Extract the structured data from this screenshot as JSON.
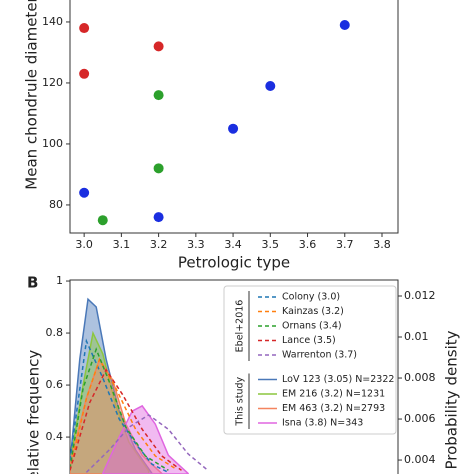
{
  "chart_data": [
    {
      "type": "scatter",
      "x_label": "Petrologic type",
      "y_label": "Mean chondrule diameter",
      "xlim": [
        2.962,
        3.843
      ],
      "xticks": [
        {
          "value": 3.0,
          "label": "3.0"
        },
        3.1,
        3.2,
        3.3,
        3.4,
        3.5,
        3.6,
        3.7,
        3.8
      ],
      "ylim": [
        70.8,
        147.2
      ],
      "yticks": [
        80,
        100,
        120,
        140
      ],
      "series": [
        {
          "color": "#d62728",
          "x": [
            3.0,
            3.0,
            3.2
          ],
          "values": [
            138,
            123,
            132
          ]
        },
        {
          "color": "#1a2ee0",
          "x": [
            3.0,
            3.2,
            3.4,
            3.5,
            3.7
          ],
          "values": [
            84,
            76,
            105,
            119,
            139
          ]
        },
        {
          "color": "#2ca02c",
          "x": [
            3.05,
            3.2,
            3.2
          ],
          "values": [
            75,
            116,
            92
          ]
        }
      ]
    },
    {
      "type": "density",
      "panel_label": "B",
      "y_label": "Relative frequency",
      "y2_label": "Probability density",
      "xlim": [
        0,
        100
      ],
      "ylim": [
        0.258,
        1.004
      ],
      "yticks": [
        0.4,
        0.6,
        0.8,
        1.0
      ],
      "y2lim": [
        0.00332,
        0.01278
      ],
      "y2ticks": [
        0.004,
        0.006,
        0.008,
        0.01,
        0.012
      ],
      "groups": [
        {
          "label": "Ebel+2016",
          "series": [
            {
              "name": "Colony (3.0)",
              "color": "#1f77b4",
              "style": "dashed",
              "axis": "y2",
              "x": [
                0,
                5,
                10,
                15,
                20,
                25,
                30
              ],
              "values": [
                0.004,
                0.0098,
                0.008,
                0.006,
                0.0048,
                0.0038,
                0.0034
              ]
            },
            {
              "name": "Kainzas (3.2)",
              "color": "#ff7f0e",
              "style": "dashed",
              "axis": "y2",
              "x": [
                0,
                5,
                9,
                14,
                20,
                26,
                32
              ],
              "values": [
                0.0035,
                0.007,
                0.0089,
                0.0075,
                0.0055,
                0.0042,
                0.0036
              ]
            },
            {
              "name": "Ornans (3.4)",
              "color": "#2ca02c",
              "style": "dashed",
              "axis": "y2",
              "x": [
                0,
                4,
                8,
                12,
                17,
                23,
                30
              ],
              "values": [
                0.0036,
                0.0075,
                0.0094,
                0.0078,
                0.0056,
                0.0042,
                0.0035
              ]
            },
            {
              "name": "Lance (3.5)",
              "color": "#d62728",
              "style": "dashed",
              "axis": "y2",
              "x": [
                0,
                6,
                11,
                16,
                22,
                28,
                34
              ],
              "values": [
                0.0035,
                0.0068,
                0.0084,
                0.0072,
                0.0055,
                0.0042,
                0.0035
              ]
            },
            {
              "name": "Warrenton (3.7)",
              "color": "#9467bd",
              "style": "dashed",
              "axis": "y2",
              "x": [
                5,
                12,
                18,
                24,
                30,
                36,
                42
              ],
              "values": [
                0.0034,
                0.0045,
                0.0056,
                0.0062,
                0.0055,
                0.0043,
                0.0035
              ]
            }
          ]
        },
        {
          "label": "This study",
          "series": [
            {
              "name": "LoV 123 (3.05) N=2322",
              "color": "#4a78b8",
              "style": "filled",
              "axis": "y",
              "x": [
                0,
                3,
                5.5,
                8,
                11,
                15,
                20,
                25
              ],
              "values": [
                0.3,
                0.7,
                0.93,
                0.9,
                0.7,
                0.5,
                0.35,
                0.26
              ]
            },
            {
              "name": "EM 216 (3.2) N=1231",
              "color": "#8cc63f",
              "style": "filled",
              "axis": "y",
              "x": [
                0,
                4,
                7,
                10,
                14,
                18,
                24
              ],
              "values": [
                0.3,
                0.6,
                0.8,
                0.72,
                0.52,
                0.38,
                0.27
              ]
            },
            {
              "name": "EM 463 (3.2) N=2793",
              "color": "#f4845f",
              "style": "filled",
              "axis": "y",
              "x": [
                0,
                5,
                9,
                13,
                17,
                22,
                28
              ],
              "values": [
                0.3,
                0.55,
                0.7,
                0.62,
                0.45,
                0.33,
                0.26
              ]
            },
            {
              "name": "Isna (3.8) N=343",
              "color": "#e066e0",
              "style": "filled",
              "axis": "y",
              "x": [
                10,
                15,
                19,
                22,
                26,
                30,
                36
              ],
              "values": [
                0.26,
                0.4,
                0.5,
                0.52,
                0.45,
                0.33,
                0.26
              ]
            }
          ]
        }
      ]
    }
  ]
}
